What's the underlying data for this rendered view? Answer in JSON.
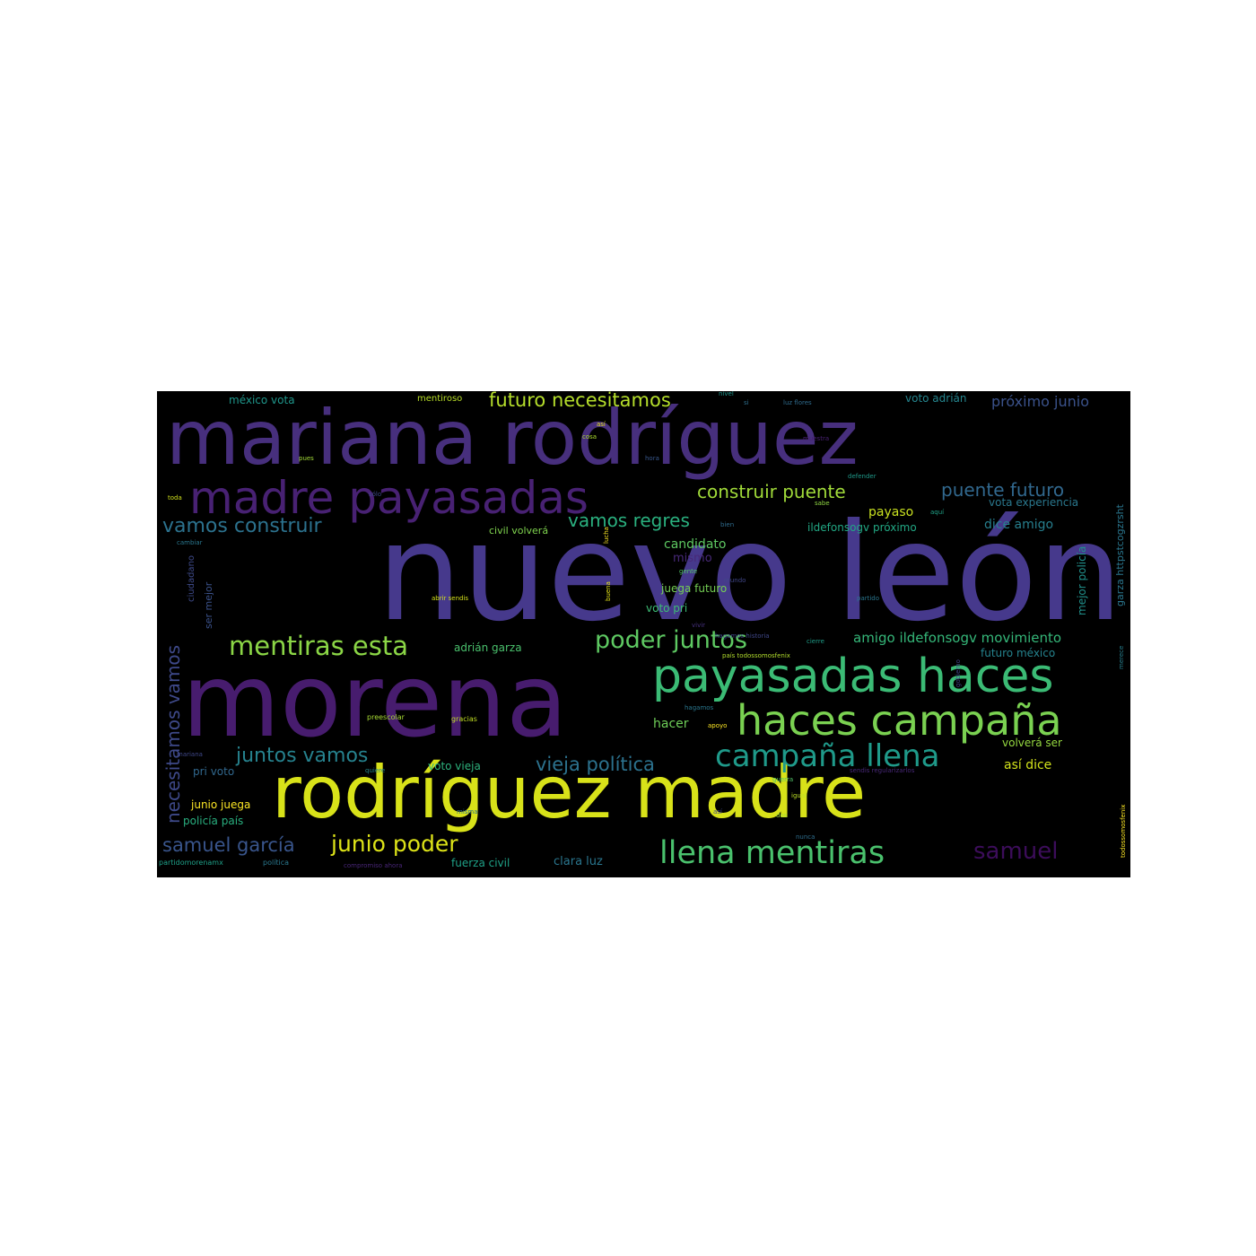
{
  "wordcloud": {
    "background": "#000000",
    "words": [
      {
        "text": "nuevo león",
        "color": "#46398c"
      },
      {
        "text": "mariana rodríguez",
        "color": "#472f7d"
      },
      {
        "text": "morena",
        "color": "#471c6e"
      },
      {
        "text": "rodríguez madre",
        "color": "#d8e219"
      },
      {
        "text": "madre payasadas",
        "color": "#482173"
      },
      {
        "text": "payasadas haces",
        "color": "#3bbb75"
      },
      {
        "text": "haces campaña",
        "color": "#7ad151"
      },
      {
        "text": "campaña llena",
        "color": "#1f9a8a"
      },
      {
        "text": "llena mentiras",
        "color": "#4ac16d"
      },
      {
        "text": "mentiras esta",
        "color": "#8bd646"
      },
      {
        "text": "poder juntos",
        "color": "#5ec962"
      },
      {
        "text": "samuel",
        "color": "#3c0d5a"
      },
      {
        "text": "futuro necesitamos",
        "color": "#b5de2b"
      },
      {
        "text": "construir puente",
        "color": "#a0da39"
      },
      {
        "text": "puente futuro",
        "color": "#31688e"
      },
      {
        "text": "vamos construir",
        "color": "#2c728e"
      },
      {
        "text": "vamos regres",
        "color": "#2ab07f"
      },
      {
        "text": "juntos vamos",
        "color": "#26828e"
      },
      {
        "text": "vieja política",
        "color": "#2c728e"
      },
      {
        "text": "samuel garcía",
        "color": "#39558c"
      },
      {
        "text": "junio poder",
        "color": "#dde318"
      },
      {
        "text": "necesitamos vamos",
        "color": "#3e4989"
      },
      {
        "text": "amigo ildefonsogv movimiento",
        "color": "#35b779"
      },
      {
        "text": "candidato",
        "color": "#5ec962"
      },
      {
        "text": "próximo junio",
        "color": "#3b528b"
      },
      {
        "text": "voto adrián",
        "color": "#25858e"
      },
      {
        "text": "méxico vota",
        "color": "#1f968b"
      },
      {
        "text": "mentiroso",
        "color": "#b8de29"
      },
      {
        "text": "dice amigo",
        "color": "#277f8e"
      },
      {
        "text": "vota experiencia",
        "color": "#2a788e"
      },
      {
        "text": "ildefonsogv próximo",
        "color": "#22a884"
      },
      {
        "text": "civil volverá",
        "color": "#7fd34e"
      },
      {
        "text": "adrián garza",
        "color": "#4ac16d"
      },
      {
        "text": "payaso",
        "color": "#c8e020"
      },
      {
        "text": "juega futuro",
        "color": "#75d054"
      },
      {
        "text": "voto pri",
        "color": "#3dbc74"
      },
      {
        "text": "mismo",
        "color": "#482979"
      },
      {
        "text": "mejor policía",
        "color": "#21918c"
      },
      {
        "text": "garza httpstcogzrsht",
        "color": "#2a768e"
      },
      {
        "text": "futuro méxico",
        "color": "#25838e"
      },
      {
        "text": "volverá ser",
        "color": "#95d840"
      },
      {
        "text": "así dice",
        "color": "#d2e21b"
      },
      {
        "text": "hacer",
        "color": "#6ece58"
      },
      {
        "text": "pri voto",
        "color": "#31688e"
      },
      {
        "text": "junio juega",
        "color": "#fde725"
      },
      {
        "text": "policía país",
        "color": "#29af7f"
      },
      {
        "text": "voto vieja",
        "color": "#2db27d"
      },
      {
        "text": "fuerza civil",
        "color": "#1fa187"
      },
      {
        "text": "clara luz",
        "color": "#2a768e"
      },
      {
        "text": "ciudadano",
        "color": "#3e4a89"
      },
      {
        "text": "ser mejor",
        "color": "#3b528b"
      },
      {
        "text": "partidomorenamx",
        "color": "#1fa088"
      },
      {
        "text": "política",
        "color": "#2a788e"
      },
      {
        "text": "compromiso ahora",
        "color": "#482677"
      },
      {
        "text": "abrir sendis",
        "color": "#d5e21a"
      },
      {
        "text": "preescolar",
        "color": "#a8db34"
      },
      {
        "text": "gracias",
        "color": "#c2df23"
      },
      {
        "text": "quiere",
        "color": "#24868e"
      },
      {
        "text": "mariana",
        "color": "#3f4889"
      },
      {
        "text": "lucha",
        "color": "#fde725"
      },
      {
        "text": "sendis regularizarlos",
        "color": "#482878"
      },
      {
        "text": "igual",
        "color": "#bddf26"
      },
      {
        "text": "guerra",
        "color": "#52c569"
      },
      {
        "text": "nunca",
        "color": "#2e6e8e"
      },
      {
        "text": "dos",
        "color": "#a2da37"
      },
      {
        "text": "misma",
        "color": "#2d718e"
      },
      {
        "text": "así",
        "color": "#404588"
      },
      {
        "text": "toda",
        "color": "#d0e11c"
      },
      {
        "text": "cambiar",
        "color": "#2a778e"
      },
      {
        "text": "gente",
        "color": "#52c569"
      },
      {
        "text": "partido",
        "color": "#2a768e"
      },
      {
        "text": "cierre",
        "color": "#1f9e89"
      },
      {
        "text": "país todossomosfenix",
        "color": "#b2dd2d"
      },
      {
        "text": "hagamos",
        "color": "#2a778e"
      },
      {
        "text": "apoyo",
        "color": "#fde725"
      },
      {
        "text": "sabe",
        "color": "#90d743"
      },
      {
        "text": "aquí",
        "color": "#1fa287"
      },
      {
        "text": "defender",
        "color": "#1f9a8a"
      },
      {
        "text": "hora",
        "color": "#38588c"
      },
      {
        "text": "cosa",
        "color": "#addc30"
      },
      {
        "text": "pues",
        "color": "#a2da37"
      },
      {
        "text": "sólo",
        "color": "#3e4989"
      },
      {
        "text": "bien",
        "color": "#2f6c8e"
      },
      {
        "text": "mundo",
        "color": "#404688"
      },
      {
        "text": "buena",
        "color": "#e5e419"
      },
      {
        "text": "luz flores",
        "color": "#2f6c8e"
      },
      {
        "text": "muestra",
        "color": "#482071"
      },
      {
        "text": "gobierno",
        "color": "#414487"
      },
      {
        "text": "todossomosfenix",
        "color": "#fde725"
      },
      {
        "text": "hagamos historia",
        "color": "#3f4788"
      },
      {
        "text": "merece",
        "color": "#277f8e"
      },
      {
        "text": "así",
        "color": "#e2e418"
      },
      {
        "text": "nivel",
        "color": "#1f958b"
      },
      {
        "text": "vivir",
        "color": "#46307e"
      },
      {
        "text": "si",
        "color": "#2e6f8e"
      }
    ]
  }
}
